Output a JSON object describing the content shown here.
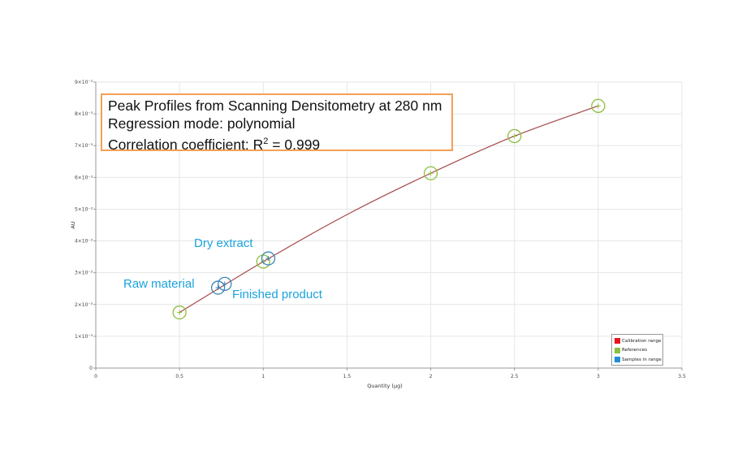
{
  "chart_data": {
    "type": "scatter",
    "title": "Peak Profiles from Scanning Densitometry at 280 nm",
    "subtitle_lines": [
      "Peak Profiles from Scanning Densitometry at 280 nm",
      "Regression mode: polynomial",
      "Correlation coefficient: R² = 0.999"
    ],
    "xlabel": "Quantity (µg)",
    "ylabel": "AU",
    "xlim": [
      0,
      3.5
    ],
    "ylim": [
      0,
      0.009
    ],
    "grid": true,
    "x_ticks": [
      "0",
      "0.5",
      "1",
      "1.5",
      "2",
      "2.5",
      "3",
      "3.5"
    ],
    "y_ticks": [
      "0",
      "1×10⁻³",
      "2×10⁻³",
      "3×10⁻³",
      "4×10⁻³",
      "5×10⁻³",
      "6×10⁻³",
      "7×10⁻³",
      "8×10⁻³",
      "9×10⁻³"
    ],
    "legend_position": "bottom-right",
    "series": [
      {
        "name": "Calibration range",
        "color": "#e8141c",
        "type": "line",
        "regression": "polynomial",
        "x": [
          0.5,
          1.0,
          1.5,
          2.0,
          2.5,
          3.0
        ],
        "y": [
          0.00175,
          0.00335,
          0.00483,
          0.00613,
          0.0073,
          0.00825
        ]
      },
      {
        "name": "References",
        "color": "#8cbf3f",
        "type": "scatter",
        "x": [
          0.5,
          1.0,
          2.0,
          2.5,
          3.0
        ],
        "y": [
          0.00175,
          0.00335,
          0.00613,
          0.0073,
          0.00825
        ]
      },
      {
        "name": "Samples in range",
        "color": "#1c8fd6",
        "type": "scatter",
        "x": [
          0.73,
          0.77,
          1.03
        ],
        "y": [
          0.00253,
          0.00265,
          0.00345
        ],
        "labels": [
          "Raw material",
          "Finished product",
          "Dry extract"
        ]
      }
    ],
    "annotations": [
      "Raw material",
      "Finished product",
      "Dry extract"
    ],
    "r_squared": 0.999
  },
  "info_box": {
    "line1": "Peak Profiles from Scanning Densitometry at 280 nm",
    "line2": "Regression mode: polynomial",
    "line3_prefix": "Correlation coefficient: R",
    "line3_sup": "2",
    "line3_suffix": " = 0.999"
  },
  "legend": {
    "items": [
      {
        "label": "Calibration range",
        "color": "#e8141c"
      },
      {
        "label": "References",
        "color": "#8cbf3f"
      },
      {
        "label": "Samples in range",
        "color": "#1c8fd6"
      }
    ]
  },
  "colors": {
    "curve": "#a6484a",
    "reference_marker": "#8cbf3f",
    "sample_marker": "#3a86b8",
    "annotation_text": "#1aa3dd",
    "info_border": "#f4a056",
    "grid": "#e6e6e6",
    "axis": "#999999"
  }
}
